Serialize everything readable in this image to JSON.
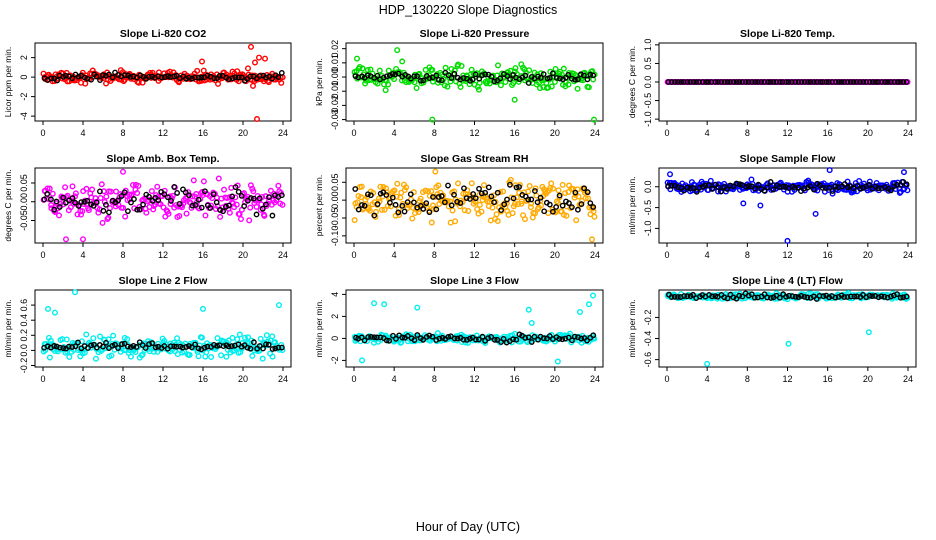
{
  "figure": {
    "title": "HDP_130220  Slope Diagnostics",
    "xlabel": "Hour of Day (UTC)"
  },
  "chart_data": [
    {
      "type": "scatter",
      "title": "Slope Li-820 CO2",
      "ylabel": "Licor ppm per min.",
      "color": "#ff0000",
      "xlim": [
        0,
        24
      ],
      "ylim": [
        -4.5,
        3.5
      ],
      "xticks": [
        0,
        4,
        8,
        12,
        16,
        20,
        24
      ],
      "yticks": [
        -4,
        -2,
        0,
        2
      ],
      "ytick_labels": [
        "-4",
        "-2",
        "0",
        "2"
      ],
      "center": 0.0,
      "spread": 0.45,
      "black_spread": 0.3,
      "outliers": [
        [
          20.8,
          3.1
        ],
        [
          21.2,
          1.5
        ],
        [
          21.6,
          2.0
        ],
        [
          20.5,
          0.9
        ],
        [
          21.4,
          -4.3
        ],
        [
          15.9,
          1.6
        ],
        [
          22.2,
          1.9
        ],
        [
          21.0,
          -0.9
        ]
      ]
    },
    {
      "type": "scatter",
      "title": "Slope Li-820 Pressure",
      "ylabel": "kPa per min.",
      "color": "#00dd00",
      "xlim": [
        0,
        24
      ],
      "ylim": [
        -0.031,
        0.024
      ],
      "xticks": [
        0,
        4,
        8,
        12,
        16,
        20,
        24
      ],
      "yticks": [
        -0.03,
        -0.02,
        -0.01,
        0,
        0.01,
        0.02
      ],
      "ytick_labels": [
        "-0.03",
        "-0.02",
        "-0.01",
        "0.00",
        "0.01",
        "0.02"
      ],
      "center": 0.0,
      "spread": 0.006,
      "black_spread": 0.003,
      "outliers": [
        [
          7.8,
          -0.03
        ],
        [
          4.3,
          0.019
        ],
        [
          16.0,
          -0.016
        ],
        [
          23.9,
          -0.03
        ],
        [
          0.3,
          0.013
        ],
        [
          4.8,
          0.011
        ]
      ]
    },
    {
      "type": "scatter",
      "title": "Slope Li-820 Temp.",
      "ylabel": "degrees C per min.",
      "color": "#ff00ff",
      "xlim": [
        0,
        24
      ],
      "ylim": [
        -1.05,
        1.05
      ],
      "xticks": [
        0,
        4,
        8,
        12,
        16,
        20,
        24
      ],
      "yticks": [
        -1,
        -0.5,
        0,
        0.5,
        1
      ],
      "ytick_labels": [
        "-1.0",
        "-0.5",
        "0.0",
        "0.5",
        "1.0"
      ],
      "center": 0.0,
      "spread": 0.0,
      "black_spread": 0.0,
      "outliers": []
    },
    {
      "type": "scatter",
      "title": "Slope Amb. Box Temp.",
      "ylabel": "degrees C per min.",
      "color": "#ff00ff",
      "xlim": [
        0,
        24
      ],
      "ylim": [
        -0.11,
        0.09
      ],
      "xticks": [
        0,
        4,
        8,
        12,
        16,
        20,
        24
      ],
      "yticks": [
        -0.05,
        0,
        0.05
      ],
      "ytick_labels": [
        "-0.05",
        "0.00",
        "0.05"
      ],
      "center": 0.0,
      "spread": 0.04,
      "black_spread": 0.03,
      "outliers": [
        [
          8.0,
          0.08
        ],
        [
          2.3,
          -0.1
        ],
        [
          4.0,
          -0.1
        ]
      ]
    },
    {
      "type": "scatter",
      "title": "Slope Gas Stream RH",
      "ylabel": "percent per min.",
      "color": "#ffaa00",
      "xlim": [
        0,
        24
      ],
      "ylim": [
        -0.12,
        0.09
      ],
      "xticks": [
        0,
        4,
        8,
        12,
        16,
        20,
        24
      ],
      "yticks": [
        -0.1,
        -0.05,
        0,
        0.05
      ],
      "ytick_labels": [
        "-0.10",
        "-0.05",
        "0.00",
        "0.05"
      ],
      "center": 0.0,
      "spread": 0.045,
      "black_spread": 0.04,
      "outliers": [
        [
          8.1,
          0.08
        ],
        [
          23.7,
          -0.11
        ]
      ]
    },
    {
      "type": "scatter",
      "title": "Slope Sample Flow",
      "ylabel": "ml/min per min.",
      "color": "#0000ff",
      "xlim": [
        0,
        24
      ],
      "ylim": [
        -1.35,
        0.45
      ],
      "xticks": [
        0,
        4,
        8,
        12,
        16,
        20,
        24
      ],
      "yticks": [
        -1,
        -0.5,
        0
      ],
      "ytick_labels": [
        "-1.0",
        "-0.5",
        "0.0"
      ],
      "center": 0.0,
      "spread": 0.12,
      "black_spread": 0.08,
      "outliers": [
        [
          12.0,
          -1.3
        ],
        [
          14.8,
          -0.65
        ],
        [
          16.2,
          0.4
        ],
        [
          23.6,
          0.35
        ],
        [
          0.3,
          0.3
        ],
        [
          7.6,
          -0.4
        ],
        [
          9.3,
          -0.45
        ]
      ]
    },
    {
      "type": "scatter",
      "title": "Slope Line 2 Flow",
      "ylabel": "ml/min per min.",
      "color": "#00eeee",
      "xlim": [
        0,
        24
      ],
      "ylim": [
        -0.22,
        0.8
      ],
      "xticks": [
        0,
        4,
        8,
        12,
        16,
        20,
        24
      ],
      "yticks": [
        -0.2,
        0,
        0.2,
        0.4,
        0.6
      ],
      "ytick_labels": [
        "-0.2",
        "0.0",
        "0.2",
        "0.4",
        "0.6"
      ],
      "center": 0.05,
      "spread": 0.12,
      "black_spread": 0.04,
      "outliers": [
        [
          3.2,
          0.77
        ],
        [
          0.5,
          0.55
        ],
        [
          1.2,
          0.5
        ],
        [
          23.6,
          0.6
        ],
        [
          16.0,
          0.55
        ]
      ]
    },
    {
      "type": "scatter",
      "title": "Slope Line 3 Flow",
      "ylabel": "ml/min per min.",
      "color": "#00eeee",
      "xlim": [
        0,
        24
      ],
      "ylim": [
        -2.6,
        4.4
      ],
      "xticks": [
        0,
        4,
        8,
        12,
        16,
        20,
        24
      ],
      "yticks": [
        -2,
        0,
        2,
        4
      ],
      "ytick_labels": [
        "-2",
        "0",
        "2",
        "4"
      ],
      "center": 0.0,
      "spread": 0.35,
      "black_spread": 0.3,
      "outliers": [
        [
          6.3,
          2.8
        ],
        [
          17.4,
          2.6
        ],
        [
          22.5,
          2.4
        ],
        [
          23.4,
          3.1
        ],
        [
          23.8,
          3.9
        ],
        [
          0.8,
          -2.0
        ],
        [
          2.0,
          3.2
        ],
        [
          3.0,
          3.1
        ],
        [
          20.3,
          -2.1
        ],
        [
          17.7,
          1.4
        ]
      ]
    },
    {
      "type": "scatter",
      "title": "Slope Line 4 (LT) Flow",
      "ylabel": "ml/min per min.",
      "color": "#00eeee",
      "xlim": [
        0,
        24
      ],
      "ylim": [
        -0.67,
        0.06
      ],
      "xticks": [
        0,
        4,
        8,
        12,
        16,
        20,
        24
      ],
      "yticks": [
        -0.6,
        -0.4,
        -0.2
      ],
      "ytick_labels": [
        "-0.6",
        "-0.4",
        "-0.2"
      ],
      "center": 0.0,
      "spread": 0.02,
      "black_spread": 0.02,
      "outliers": [
        [
          4.0,
          -0.64
        ],
        [
          12.1,
          -0.45
        ],
        [
          20.1,
          -0.34
        ]
      ]
    }
  ]
}
